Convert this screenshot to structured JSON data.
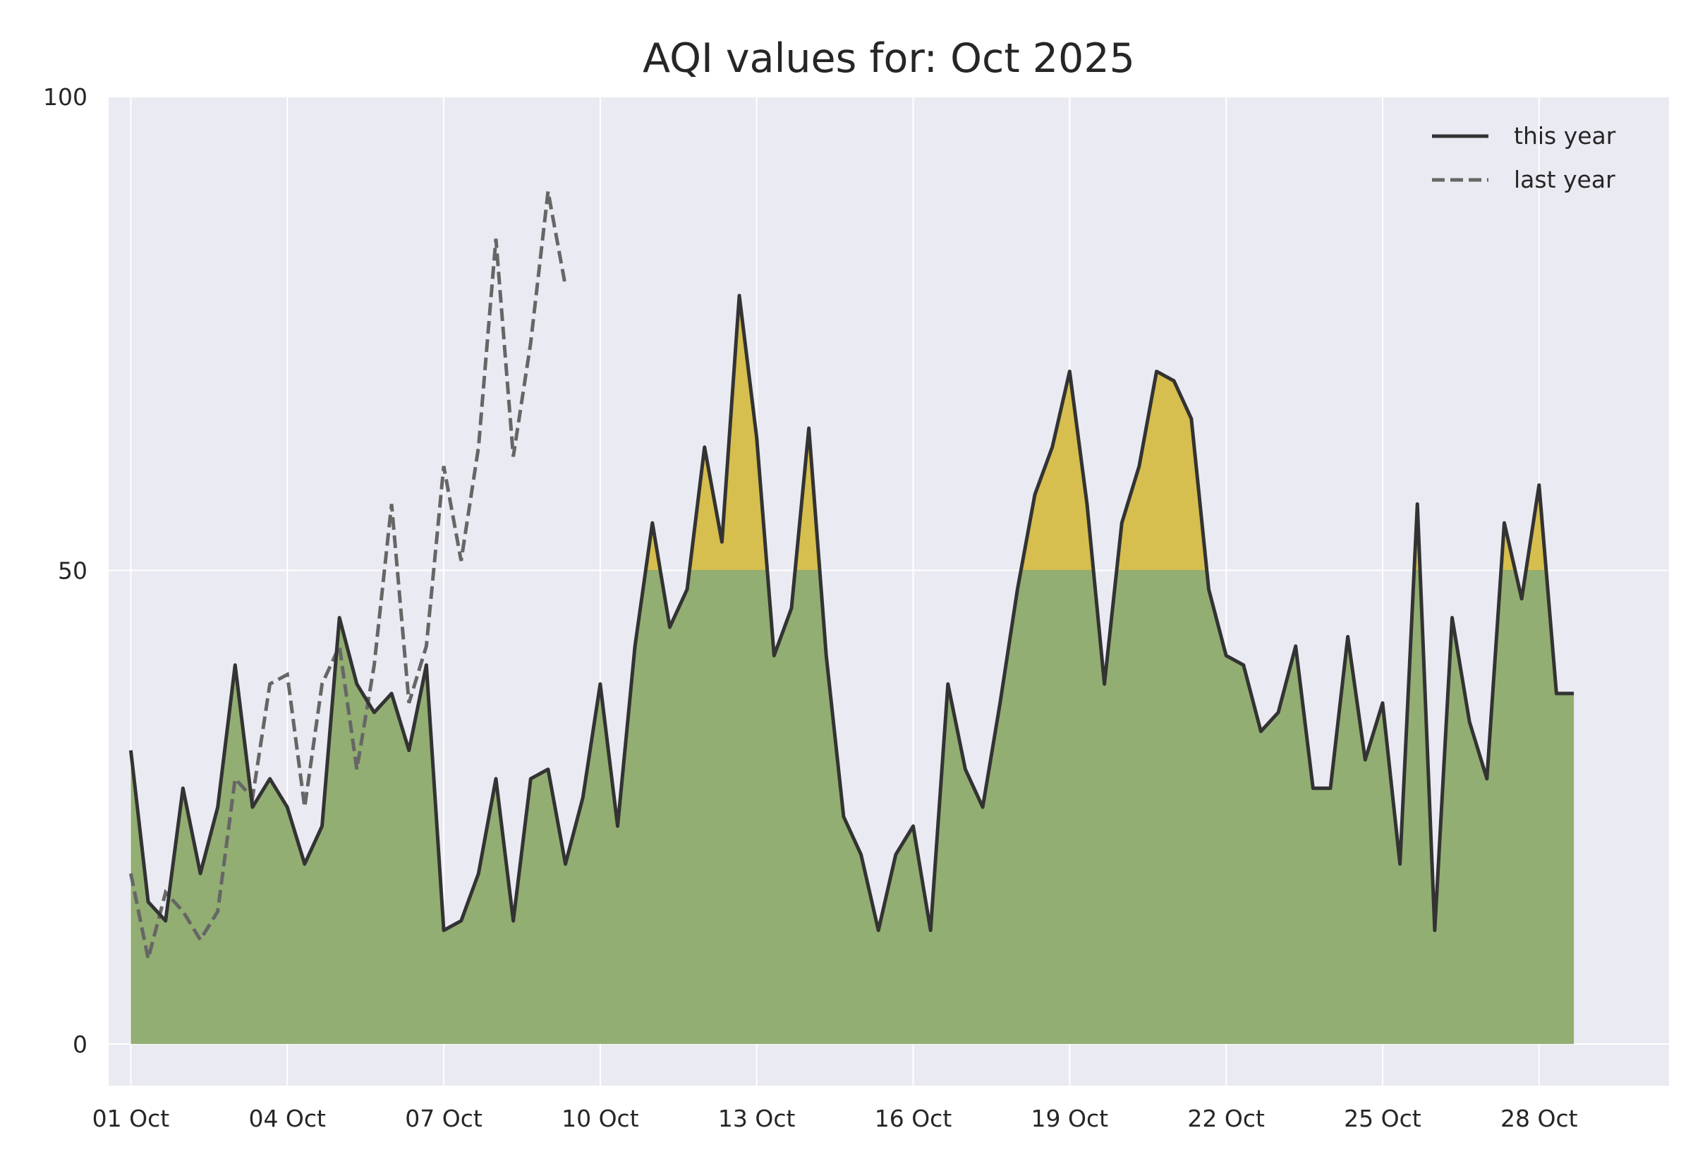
{
  "chart_data": {
    "type": "area",
    "title": "AQI values for: Oct 2025",
    "xlabel": "",
    "ylabel": "",
    "ylim": [
      -4.4,
      100
    ],
    "xlim": [
      "2025-09-30 13:48",
      "2025-10-30 11:48"
    ],
    "threshold": 50,
    "grid": true,
    "legend_position": "top-right",
    "y_ticks": [
      {
        "value": 0,
        "label": "0"
      },
      {
        "value": 50,
        "label": "50"
      },
      {
        "value": 100,
        "label": "100"
      }
    ],
    "x_ticks": [
      {
        "value": "2025-10-01",
        "label": "01 Oct"
      },
      {
        "value": "2025-10-04",
        "label": "04 Oct"
      },
      {
        "value": "2025-10-07",
        "label": "07 Oct"
      },
      {
        "value": "2025-10-10",
        "label": "10 Oct"
      },
      {
        "value": "2025-10-13",
        "label": "13 Oct"
      },
      {
        "value": "2025-10-16",
        "label": "16 Oct"
      },
      {
        "value": "2025-10-19",
        "label": "19 Oct"
      },
      {
        "value": "2025-10-22",
        "label": "22 Oct"
      },
      {
        "value": "2025-10-25",
        "label": "25 Oct"
      },
      {
        "value": "2025-10-28",
        "label": "28 Oct"
      }
    ],
    "series": [
      {
        "name": "this year",
        "style": "solid",
        "color": "#333333",
        "points": [
          [
            "2025-10-01 00:00",
            31
          ],
          [
            "2025-10-01 08:00",
            15
          ],
          [
            "2025-10-01 16:00",
            13
          ],
          [
            "2025-10-02 00:00",
            27
          ],
          [
            "2025-10-02 08:00",
            18
          ],
          [
            "2025-10-02 16:00",
            25
          ],
          [
            "2025-10-03 00:00",
            40
          ],
          [
            "2025-10-03 08:00",
            25
          ],
          [
            "2025-10-03 16:00",
            28
          ],
          [
            "2025-10-04 00:00",
            25
          ],
          [
            "2025-10-04 08:00",
            19
          ],
          [
            "2025-10-04 16:00",
            23
          ],
          [
            "2025-10-05 00:00",
            45
          ],
          [
            "2025-10-05 08:00",
            38
          ],
          [
            "2025-10-05 16:00",
            35
          ],
          [
            "2025-10-06 00:00",
            37
          ],
          [
            "2025-10-06 08:00",
            31
          ],
          [
            "2025-10-06 16:00",
            40
          ],
          [
            "2025-10-07 00:00",
            12
          ],
          [
            "2025-10-07 08:00",
            13
          ],
          [
            "2025-10-07 16:00",
            18
          ],
          [
            "2025-10-08 00:00",
            28
          ],
          [
            "2025-10-08 08:00",
            13
          ],
          [
            "2025-10-08 16:00",
            28
          ],
          [
            "2025-10-09 00:00",
            29
          ],
          [
            "2025-10-09 08:00",
            19
          ],
          [
            "2025-10-09 16:00",
            26
          ],
          [
            "2025-10-10 00:00",
            38
          ],
          [
            "2025-10-10 08:00",
            23
          ],
          [
            "2025-10-10 16:00",
            42
          ],
          [
            "2025-10-11 00:00",
            55
          ],
          [
            "2025-10-11 08:00",
            44
          ],
          [
            "2025-10-11 16:00",
            48
          ],
          [
            "2025-10-12 00:00",
            63
          ],
          [
            "2025-10-12 08:00",
            53
          ],
          [
            "2025-10-12 16:00",
            79
          ],
          [
            "2025-10-13 00:00",
            64
          ],
          [
            "2025-10-13 08:00",
            41
          ],
          [
            "2025-10-13 16:00",
            46
          ],
          [
            "2025-10-14 00:00",
            65
          ],
          [
            "2025-10-14 08:00",
            41
          ],
          [
            "2025-10-14 16:00",
            24
          ],
          [
            "2025-10-15 00:00",
            20
          ],
          [
            "2025-10-15 08:00",
            12
          ],
          [
            "2025-10-15 16:00",
            20
          ],
          [
            "2025-10-16 00:00",
            23
          ],
          [
            "2025-10-16 08:00",
            12
          ],
          [
            "2025-10-16 16:00",
            38
          ],
          [
            "2025-10-17 00:00",
            29
          ],
          [
            "2025-10-17 08:00",
            25
          ],
          [
            "2025-10-17 16:00",
            36
          ],
          [
            "2025-10-18 00:00",
            48
          ],
          [
            "2025-10-18 08:00",
            58
          ],
          [
            "2025-10-18 16:00",
            63
          ],
          [
            "2025-10-19 00:00",
            71
          ],
          [
            "2025-10-19 08:00",
            57
          ],
          [
            "2025-10-19 16:00",
            38
          ],
          [
            "2025-10-20 00:00",
            55
          ],
          [
            "2025-10-20 08:00",
            61
          ],
          [
            "2025-10-20 16:00",
            71
          ],
          [
            "2025-10-21 00:00",
            70
          ],
          [
            "2025-10-21 08:00",
            66
          ],
          [
            "2025-10-21 16:00",
            48
          ],
          [
            "2025-10-22 00:00",
            41
          ],
          [
            "2025-10-22 08:00",
            40
          ],
          [
            "2025-10-22 16:00",
            33
          ],
          [
            "2025-10-23 00:00",
            35
          ],
          [
            "2025-10-23 08:00",
            42
          ],
          [
            "2025-10-23 16:00",
            27
          ],
          [
            "2025-10-24 00:00",
            27
          ],
          [
            "2025-10-24 08:00",
            43
          ],
          [
            "2025-10-24 16:00",
            30
          ],
          [
            "2025-10-25 00:00",
            36
          ],
          [
            "2025-10-25 08:00",
            19
          ],
          [
            "2025-10-25 16:00",
            57
          ],
          [
            "2025-10-26 00:00",
            12
          ],
          [
            "2025-10-26 08:00",
            45
          ],
          [
            "2025-10-26 16:00",
            34
          ],
          [
            "2025-10-27 00:00",
            28
          ],
          [
            "2025-10-27 08:00",
            55
          ],
          [
            "2025-10-27 16:00",
            47
          ],
          [
            "2025-10-28 00:00",
            59
          ],
          [
            "2025-10-28 08:00",
            37
          ],
          [
            "2025-10-28 16:00",
            37
          ]
        ]
      },
      {
        "name": "last year",
        "style": "dashed",
        "color": "#666666",
        "points": [
          [
            "2025-10-01 00:00",
            18
          ],
          [
            "2025-10-01 08:00",
            9
          ],
          [
            "2025-10-01 16:00",
            16
          ],
          [
            "2025-10-02 00:00",
            14
          ],
          [
            "2025-10-02 08:00",
            11
          ],
          [
            "2025-10-02 16:00",
            14
          ],
          [
            "2025-10-03 00:00",
            28
          ],
          [
            "2025-10-03 08:00",
            26
          ],
          [
            "2025-10-03 16:00",
            38
          ],
          [
            "2025-10-04 00:00",
            39
          ],
          [
            "2025-10-04 08:00",
            25
          ],
          [
            "2025-10-04 16:00",
            38
          ],
          [
            "2025-10-05 00:00",
            42
          ],
          [
            "2025-10-05 08:00",
            29
          ],
          [
            "2025-10-05 16:00",
            40
          ],
          [
            "2025-10-06 00:00",
            57
          ],
          [
            "2025-10-06 08:00",
            36
          ],
          [
            "2025-10-06 16:00",
            42
          ],
          [
            "2025-10-07 00:00",
            61
          ],
          [
            "2025-10-07 08:00",
            51
          ],
          [
            "2025-10-07 16:00",
            63
          ],
          [
            "2025-10-08 00:00",
            85
          ],
          [
            "2025-10-08 08:00",
            62
          ],
          [
            "2025-10-08 16:00",
            74
          ],
          [
            "2025-10-09 00:00",
            90
          ],
          [
            "2025-10-09 08:00",
            80
          ]
        ]
      }
    ]
  },
  "legend": {
    "items": [
      {
        "label": "this year"
      },
      {
        "label": "last year"
      }
    ]
  },
  "colors": {
    "plot_background": "#eaeaf2",
    "grid": "#ffffff",
    "fill_good": "#92ae72",
    "fill_moderate": "#d6be4f",
    "this_year_line": "#333333",
    "last_year_line": "#666666"
  }
}
